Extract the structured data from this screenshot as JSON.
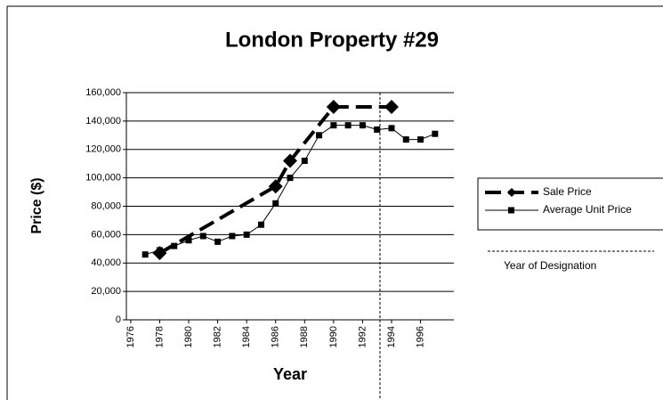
{
  "chart_data": {
    "type": "line",
    "title": "London Property #29",
    "x_label": "Year",
    "y_label": "Price ($)",
    "xlim": [
      1975.7,
      1998.3
    ],
    "xticks": [
      1976,
      1978,
      1980,
      1982,
      1984,
      1986,
      1988,
      1990,
      1992,
      1994,
      1996
    ],
    "ylim": [
      0,
      160000
    ],
    "yticks": [
      0,
      {
        "value": 20000,
        "label": "20,000"
      },
      {
        "value": 40000,
        "label": "40,000"
      },
      {
        "value": 60000,
        "label": "60,000"
      },
      {
        "value": 80000,
        "label": "80,000"
      },
      {
        "value": 100000,
        "label": "100,000"
      },
      {
        "value": 120000,
        "label": "120,000"
      },
      {
        "value": 140000,
        "label": "140,000"
      },
      {
        "value": 160000,
        "label": "160,000"
      }
    ],
    "grid": true,
    "series": [
      {
        "name": "Sale Price",
        "color": "#000000",
        "x": [
          1978,
          1986,
          1987,
          1990,
          1994
        ],
        "values": [
          47000,
          94000,
          112000,
          150000,
          150000
        ]
      },
      {
        "name": "Average Unit Price",
        "color": "#000000",
        "x": [
          1977,
          1978,
          1979,
          1980,
          1981,
          1982,
          1983,
          1984,
          1985,
          1986,
          1987,
          1988,
          1989,
          1990,
          1991,
          1992,
          1993,
          1994,
          1995,
          1996,
          1997
        ],
        "values": [
          46000,
          49000,
          52000,
          56000,
          59000,
          55000,
          59000,
          60000,
          67000,
          82000,
          100000,
          112000,
          130000,
          137000,
          137000,
          137000,
          134000,
          135000,
          127000,
          127000,
          131000
        ]
      }
    ],
    "designation": {
      "label": "Year of Designation",
      "x": 1993.2
    }
  }
}
